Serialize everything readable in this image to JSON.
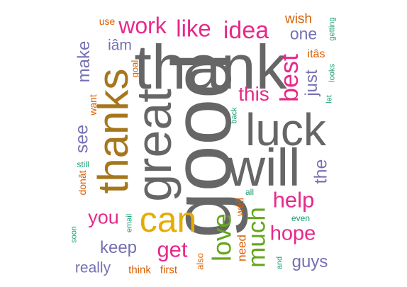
{
  "words": [
    {
      "text": "good",
      "color": "#666666",
      "weight": 10
    },
    {
      "text": "thank",
      "color": "#666666",
      "weight": 9
    },
    {
      "text": "will",
      "color": "#666666",
      "weight": 8
    },
    {
      "text": "luck",
      "color": "#666666",
      "weight": 8
    },
    {
      "text": "great",
      "color": "#666666",
      "weight": 8
    },
    {
      "text": "thanks",
      "color": "#A6761D",
      "weight": 8
    },
    {
      "text": "can",
      "color": "#E6AB02",
      "weight": 5
    },
    {
      "text": "best",
      "color": "#E7298A",
      "weight": 4
    },
    {
      "text": "love",
      "color": "#66A61E",
      "weight": 4
    },
    {
      "text": "much",
      "color": "#66A61E",
      "weight": 4
    },
    {
      "text": "help",
      "color": "#E7298A",
      "weight": 4
    },
    {
      "text": "idea",
      "color": "#E7298A",
      "weight": 3
    },
    {
      "text": "like",
      "color": "#E7298A",
      "weight": 3
    },
    {
      "text": "work",
      "color": "#E7298A",
      "weight": 3
    },
    {
      "text": "this",
      "color": "#E7298A",
      "weight": 3
    },
    {
      "text": "hope",
      "color": "#E7298A",
      "weight": 3
    },
    {
      "text": "you",
      "color": "#E7298A",
      "weight": 3
    },
    {
      "text": "get",
      "color": "#E7298A",
      "weight": 3
    },
    {
      "text": "the",
      "color": "#7570B3",
      "weight": 3
    },
    {
      "text": "just",
      "color": "#7570B3",
      "weight": 3
    },
    {
      "text": "one",
      "color": "#7570B3",
      "weight": 3
    },
    {
      "text": "make",
      "color": "#7570B3",
      "weight": 2
    },
    {
      "text": "see",
      "color": "#7570B3",
      "weight": 2
    },
    {
      "text": "keep",
      "color": "#7570B3",
      "weight": 2
    },
    {
      "text": "guys",
      "color": "#7570B3",
      "weight": 2
    },
    {
      "text": "really",
      "color": "#7570B3",
      "weight": 2
    },
    {
      "text": "iâm",
      "color": "#7570B3",
      "weight": 2
    },
    {
      "text": "wish",
      "color": "#D95F02",
      "weight": 2
    },
    {
      "text": "itâs",
      "color": "#D95F02",
      "weight": 2
    },
    {
      "text": "need",
      "color": "#D95F02",
      "weight": 2
    },
    {
      "text": "well",
      "color": "#D95F02",
      "weight": 2
    },
    {
      "text": "want",
      "color": "#D95F02",
      "weight": 1
    },
    {
      "text": "donât",
      "color": "#D95F02",
      "weight": 1
    },
    {
      "text": "think",
      "color": "#D95F02",
      "weight": 1
    },
    {
      "text": "first",
      "color": "#D95F02",
      "weight": 1
    },
    {
      "text": "use",
      "color": "#D95F02",
      "weight": 1
    },
    {
      "text": "goal",
      "color": "#D95F02",
      "weight": 1
    },
    {
      "text": "also",
      "color": "#D95F02",
      "weight": 1
    },
    {
      "text": "getting",
      "color": "#1B9E77",
      "weight": 1
    },
    {
      "text": "looks",
      "color": "#1B9E77",
      "weight": 1
    },
    {
      "text": "let",
      "color": "#1B9E77",
      "weight": 1
    },
    {
      "text": "back",
      "color": "#1B9E77",
      "weight": 1
    },
    {
      "text": "still",
      "color": "#1B9E77",
      "weight": 1
    },
    {
      "text": "soon",
      "color": "#1B9E77",
      "weight": 1
    },
    {
      "text": "email",
      "color": "#1B9E77",
      "weight": 1
    },
    {
      "text": "all",
      "color": "#1B9E77",
      "weight": 1
    },
    {
      "text": "even",
      "color": "#1B9E77",
      "weight": 1
    },
    {
      "text": "and",
      "color": "#1B9E77",
      "weight": 1
    }
  ]
}
